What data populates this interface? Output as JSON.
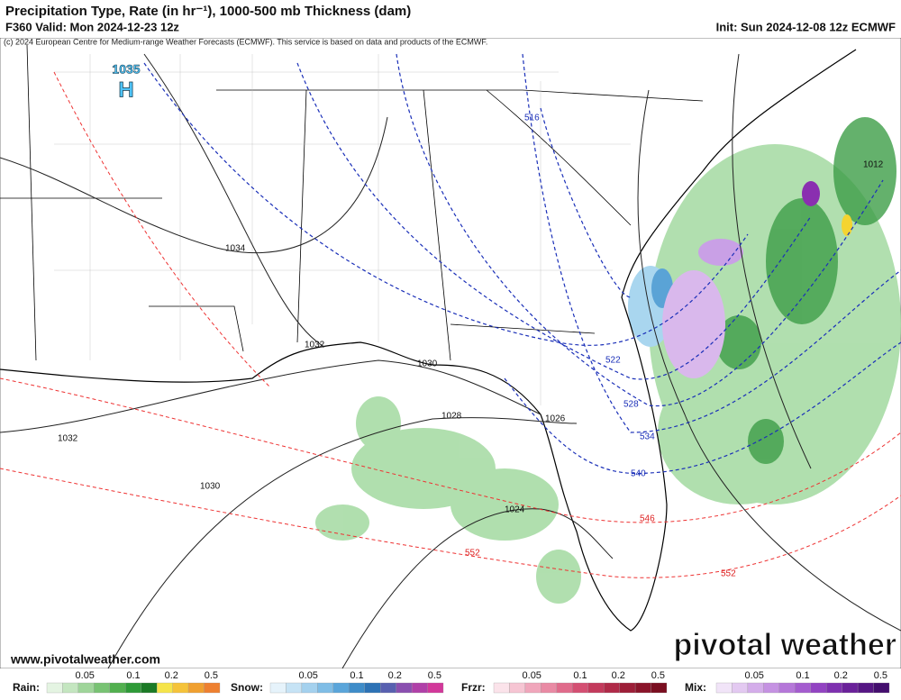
{
  "header": {
    "title": "Precipitation Type, Rate (in hr⁻¹), 1000-500 mb Thickness (dam)",
    "valid": "F360 Valid: Mon 2024-12-23 12z",
    "init": "Init: Sun 2024-12-08 12z ECMWF",
    "credit": "(c) 2024 European Centre for Medium-range Weather Forecasts (ECMWF). This service is based on data and products of the ECMWF."
  },
  "map": {
    "high": {
      "pressure": "1035",
      "label": "H"
    },
    "isobar_labels": [
      "1034",
      "1032",
      "1030",
      "1028",
      "1026",
      "1024",
      "1032",
      "1030",
      "1012"
    ],
    "thickness_labels": [
      "516",
      "522",
      "528",
      "534",
      "540",
      "546",
      "552",
      "552"
    ]
  },
  "footer": {
    "website": "www.pivotalweather.com",
    "brand": "pivotal weather"
  },
  "legend": {
    "groups": [
      {
        "name": "Rain:",
        "ticks": [
          "0.05",
          "0.1",
          "0.2",
          "0.5"
        ]
      },
      {
        "name": "Snow:",
        "ticks": [
          "0.05",
          "0.1",
          "0.2",
          "0.5"
        ]
      },
      {
        "name": "Frzr:",
        "ticks": [
          "0.05",
          "0.1",
          "0.2",
          "0.5"
        ]
      },
      {
        "name": "Mix:",
        "ticks": [
          "0.05",
          "0.1",
          "0.2",
          "0.5"
        ]
      }
    ]
  }
}
